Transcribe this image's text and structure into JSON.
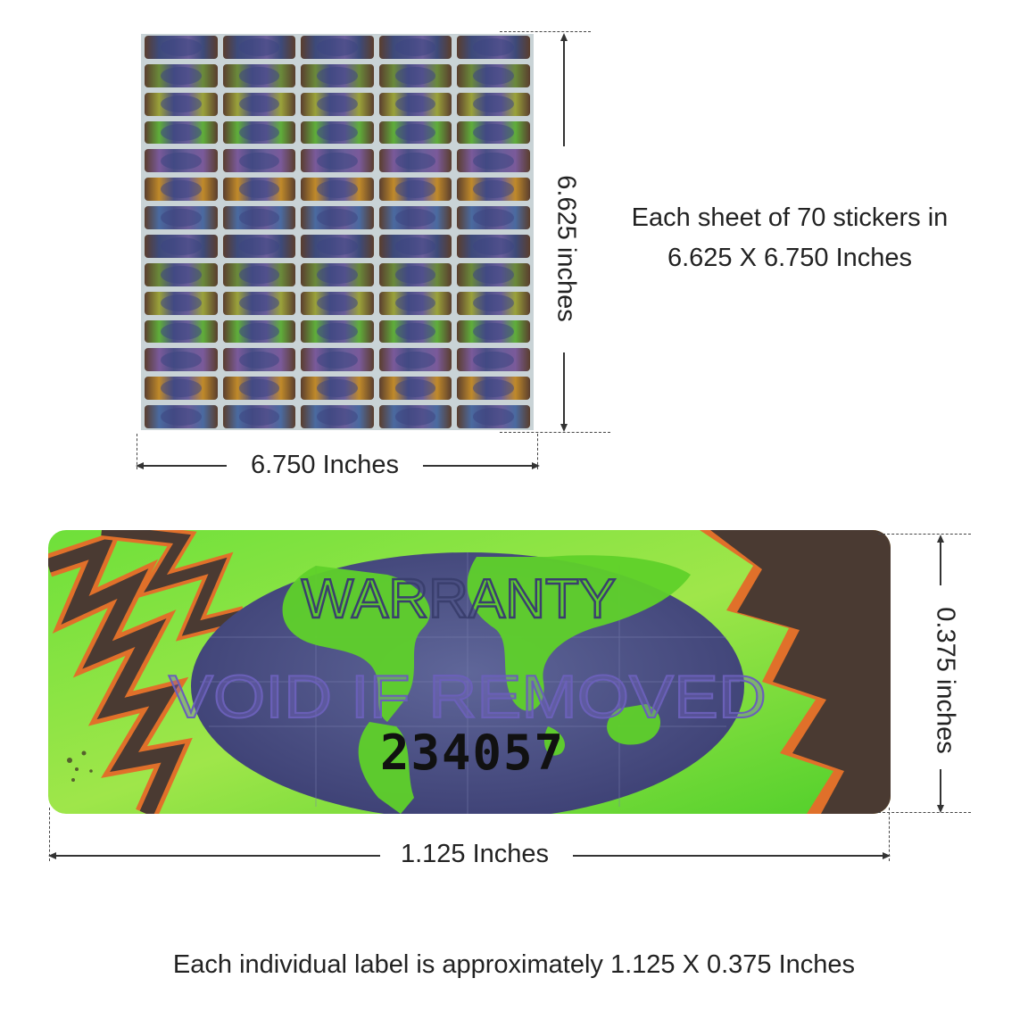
{
  "sheet": {
    "height_label": "6.625 inches",
    "width_label": "6.750 Inches",
    "sticker_count": 70,
    "columns": 5,
    "rows": 14
  },
  "sheet_caption": {
    "line1": "Each sheet of 70 stickers in",
    "line2": "6.625 X 6.750 Inches"
  },
  "label": {
    "line1": "WARRANTY",
    "line2": "VOID IF REMOVED",
    "serial": "234057",
    "width_label": "1.125 Inches",
    "height_label": "0.375 inches"
  },
  "footer_caption": "Each individual label is approximately 1.125 X 0.375 Inches",
  "colors": {
    "hologram_green": "#5fd12a",
    "hologram_brown": "#4a3a32",
    "hologram_blue": "#4a4f86",
    "text": "#222222"
  }
}
